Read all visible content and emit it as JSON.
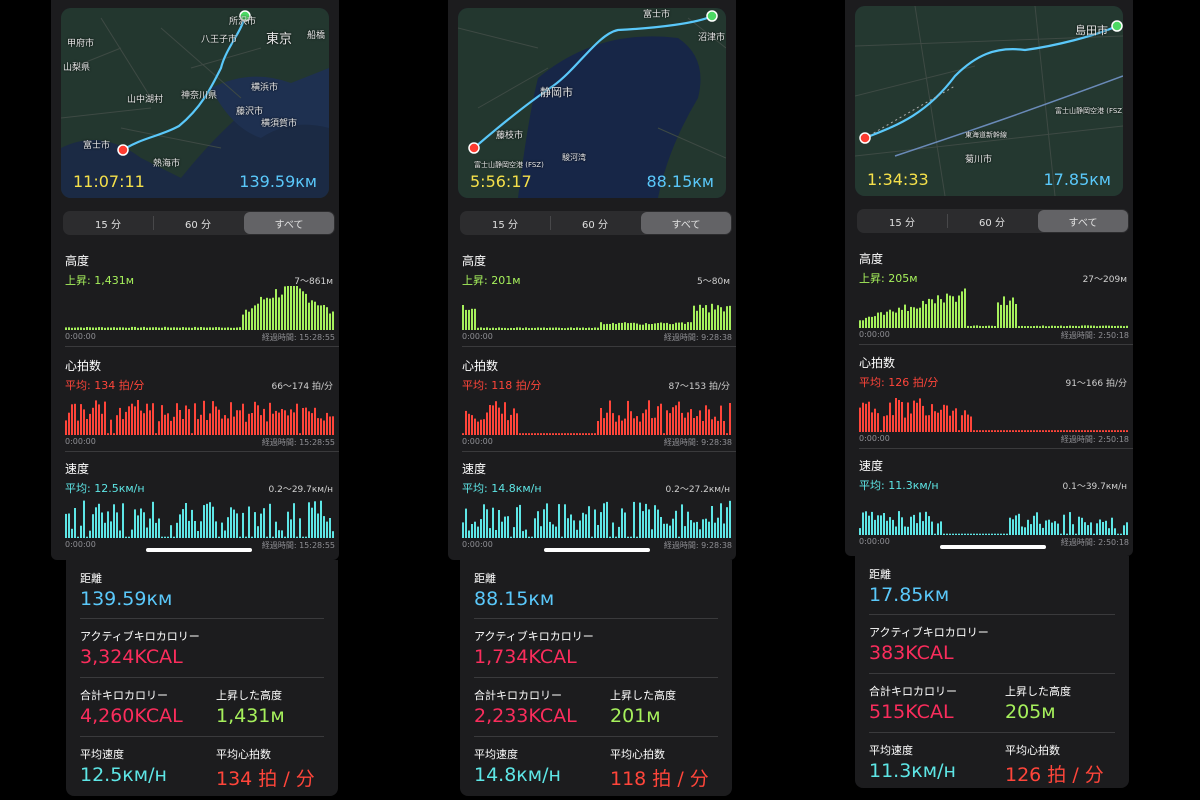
{
  "colors": {
    "distance": "#5ac8fa",
    "kcal": "#fa2d5c",
    "elevation": "#a6f05c",
    "speed": "#5ee6e6",
    "heart": "#ff453a",
    "time": "#f5e04a"
  },
  "workouts": [
    {
      "map": {
        "time": "11:07:11",
        "distance": "139.59км",
        "labels": [
          "所沢市",
          "甲府市",
          "八王子市",
          "東京",
          "船橋",
          "山梨県",
          "横浜市",
          "神奈川県",
          "山中湖村",
          "藤沢市",
          "横須賀市",
          "富士市",
          "熱海市"
        ]
      },
      "segments": [
        "15 分",
        "60 分",
        "すべて"
      ],
      "elevation": {
        "title": "高度",
        "sub": "上昇: 1,431м",
        "range": "7〜861м",
        "x0": "0:00:00",
        "x1": "経過時間: 15:28:55"
      },
      "heart": {
        "title": "心拍数",
        "sub": "平均: 134 拍/分",
        "range": "66〜174 拍/分",
        "x0": "0:00:00",
        "x1": "経過時間: 15:28:55"
      },
      "speed": {
        "title": "速度",
        "sub": "平均: 12.5км/н",
        "range": "0.2〜29.7км/н",
        "x0": "0:00:00",
        "x1": "経過時間: 15:28:55"
      },
      "stats": {
        "distance_label": "距離",
        "distance": "139.59км",
        "active_kcal_label": "アクティブキロカロリー",
        "active_kcal": "3,324KCAL",
        "total_kcal_label": "合計キロカロリー",
        "total_kcal": "4,260KCAL",
        "ascent_label": "上昇した高度",
        "ascent": "1,431м",
        "avg_speed_label": "平均速度",
        "avg_speed": "12.5км/н",
        "avg_hr_label": "平均心拍数",
        "avg_hr": "134 拍 / 分"
      }
    },
    {
      "map": {
        "time": "5:56:17",
        "distance": "88.15км",
        "labels": [
          "富士市",
          "沼津市",
          "静岡市",
          "藤枝市",
          "富士山静岡空港 (FSZ)",
          "駿河湾"
        ]
      },
      "segments": [
        "15 分",
        "60 分",
        "すべて"
      ],
      "elevation": {
        "title": "高度",
        "sub": "上昇: 201м",
        "range": "5〜80м",
        "x0": "0:00:00",
        "x1": "経過時間: 9:28:38"
      },
      "heart": {
        "title": "心拍数",
        "sub": "平均: 118 拍/分",
        "range": "87〜153 拍/分",
        "x0": "0:00:00",
        "x1": "経過時間: 9:28:38"
      },
      "speed": {
        "title": "速度",
        "sub": "平均: 14.8км/н",
        "range": "0.2〜27.2км/н",
        "x0": "0:00:00",
        "x1": "経過時間: 9:28:38"
      },
      "stats": {
        "distance_label": "距離",
        "distance": "88.15км",
        "active_kcal_label": "アクティブキロカロリー",
        "active_kcal": "1,734KCAL",
        "total_kcal_label": "合計キロカロリー",
        "total_kcal": "2,233KCAL",
        "ascent_label": "上昇した高度",
        "ascent": "201м",
        "avg_speed_label": "平均速度",
        "avg_speed": "14.8км/н",
        "avg_hr_label": "平均心拍数",
        "avg_hr": "118 拍 / 分"
      }
    },
    {
      "map": {
        "time": "1:34:33",
        "distance": "17.85км",
        "labels": [
          "島田市",
          "富士山静岡空港 (FSZ)",
          "東海道新幹線",
          "菊川市"
        ]
      },
      "segments": [
        "15 分",
        "60 分",
        "すべて"
      ],
      "elevation": {
        "title": "高度",
        "sub": "上昇: 205м",
        "range": "27〜209м",
        "x0": "0:00:00",
        "x1": "経過時間: 2:50:18"
      },
      "heart": {
        "title": "心拍数",
        "sub": "平均: 126 拍/分",
        "range": "91〜166 拍/分",
        "x0": "0:00:00",
        "x1": "経過時間: 2:50:18"
      },
      "speed": {
        "title": "速度",
        "sub": "平均: 11.3км/н",
        "range": "0.1〜39.7км/н",
        "x0": "0:00:00",
        "x1": "経過時間: 2:50:18"
      },
      "stats": {
        "distance_label": "距離",
        "distance": "17.85км",
        "active_kcal_label": "アクティブキロカロリー",
        "active_kcal": "383KCAL",
        "total_kcal_label": "合計キロカロリー",
        "total_kcal": "515KCAL",
        "ascent_label": "上昇した高度",
        "ascent": "205м",
        "avg_speed_label": "平均速度",
        "avg_speed": "11.3км/н",
        "avg_hr_label": "平均心拍数",
        "avg_hr": "126 拍 / 分"
      }
    }
  ]
}
